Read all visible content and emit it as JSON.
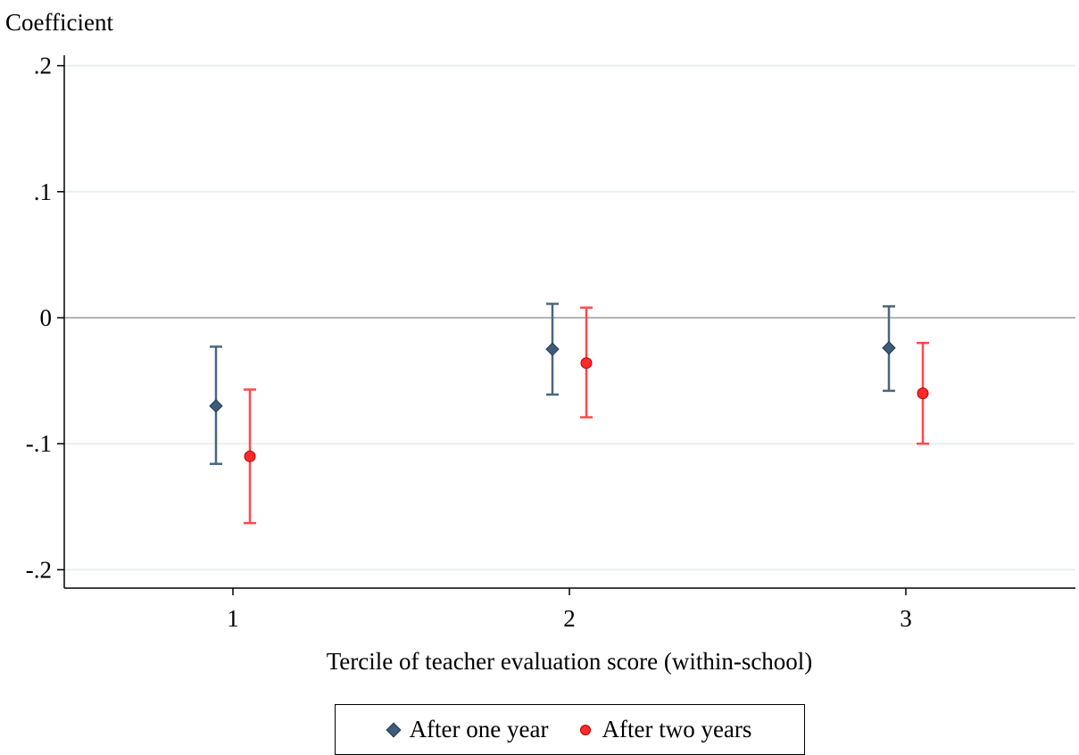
{
  "chart_data": {
    "type": "scatter",
    "ylabel": "Coefficient",
    "xlabel": "Tercile of teacher evaluation score (within-school)",
    "categories": [
      "1",
      "2",
      "3"
    ],
    "ylim": [
      -0.215,
      0.215
    ],
    "y_ticks": [
      -0.2,
      -0.1,
      0,
      0.1,
      0.2
    ],
    "y_tick_labels": [
      "-.2",
      "-.1",
      "0",
      ".1",
      ".2"
    ],
    "reference_line": 0,
    "grid": true,
    "legend_position": "bottom",
    "series": [
      {
        "name": "After one year",
        "marker": "diamond",
        "color": "#3e5c7a",
        "values": [
          -0.07,
          -0.025,
          -0.024
        ],
        "ci_low": [
          -0.116,
          -0.061,
          -0.058
        ],
        "ci_high": [
          -0.023,
          0.011,
          0.009
        ]
      },
      {
        "name": "After two years",
        "marker": "circle",
        "color": "#ff2a2a",
        "values": [
          -0.11,
          -0.036,
          -0.06
        ],
        "ci_low": [
          -0.163,
          -0.079,
          -0.1
        ],
        "ci_high": [
          -0.057,
          0.008,
          -0.02
        ]
      }
    ]
  }
}
